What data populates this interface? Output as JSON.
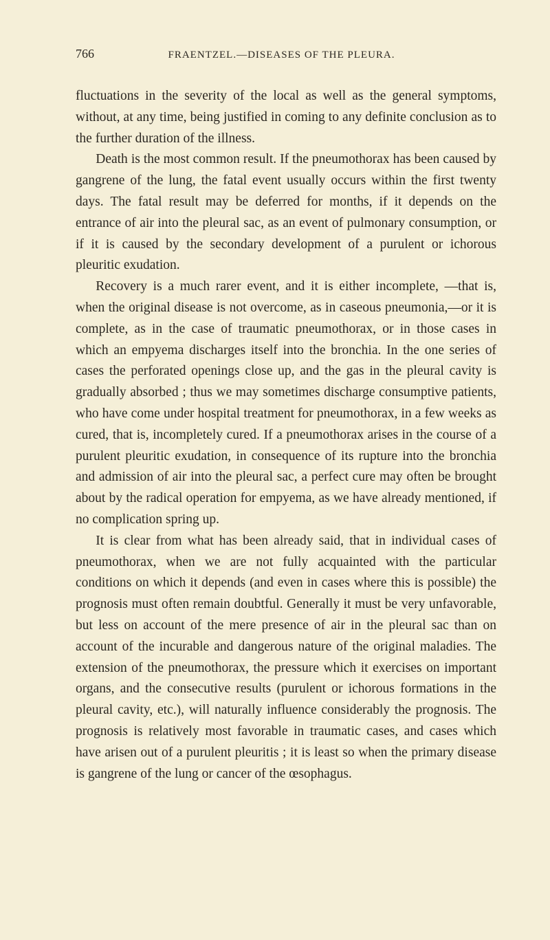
{
  "page": {
    "number": "766",
    "running_title": "FRAENTZEL.—DISEASES OF THE PLEURA.",
    "background_color": "#f5efd8",
    "text_color": "#2a2620",
    "font_family": "Georgia, 'Times New Roman', serif",
    "body_fontsize": 19.5,
    "line_height": 1.58
  },
  "paragraphs": {
    "p1": "fluctuations in the severity of the local as well as the general symptoms, without, at any time, being justified in coming to any definite conclusion as to the further duration of the illness.",
    "p2": "Death is the most common result. If the pneumothorax has been caused by gangrene of the lung, the fatal event usually occurs within the first twenty days. The fatal result may be deferred for months, if it depends on the entrance of air into the pleural sac, as an event of pulmonary consumption, or if it is caused by the secondary development of a purulent or ichorous pleuritic exudation.",
    "p3": "Recovery is a much rarer event, and it is either incomplete, —that is, when the original disease is not overcome, as in caseous pneumonia,—or it is complete, as in the case of traumatic pneumothorax, or in those cases in which an empyema discharges itself into the bronchia. In the one series of cases the perforated openings close up, and the gas in the pleural cavity is gradually absorbed ; thus we may sometimes discharge consumptive patients, who have come under hospital treatment for pneumothorax, in a few weeks as cured, that is, incompletely cured. If a pneumothorax arises in the course of a purulent pleuritic exudation, in consequence of its rupture into the bronchia and admission of air into the pleural sac, a perfect cure may often be brought about by the radical operation for empyema, as we have already mentioned, if no complication spring up.",
    "p4": "It is clear from what has been already said, that in individual cases of pneumothorax, when we are not fully acquainted with the particular conditions on which it depends (and even in cases where this is possible) the prognosis must often remain doubtful. Generally it must be very unfavorable, but less on account of the mere presence of air in the pleural sac than on account of the incurable and dangerous nature of the original maladies. The extension of the pneumothorax, the pressure which it exercises on important organs, and the consecutive results (purulent or ichorous formations in the pleural cavity, etc.), will naturally influence considerably the prognosis. The prognosis is relatively most favorable in traumatic cases, and cases which have arisen out of a purulent pleuritis ; it is least so when the primary disease is gangrene of the lung or cancer of the œsophagus."
  }
}
